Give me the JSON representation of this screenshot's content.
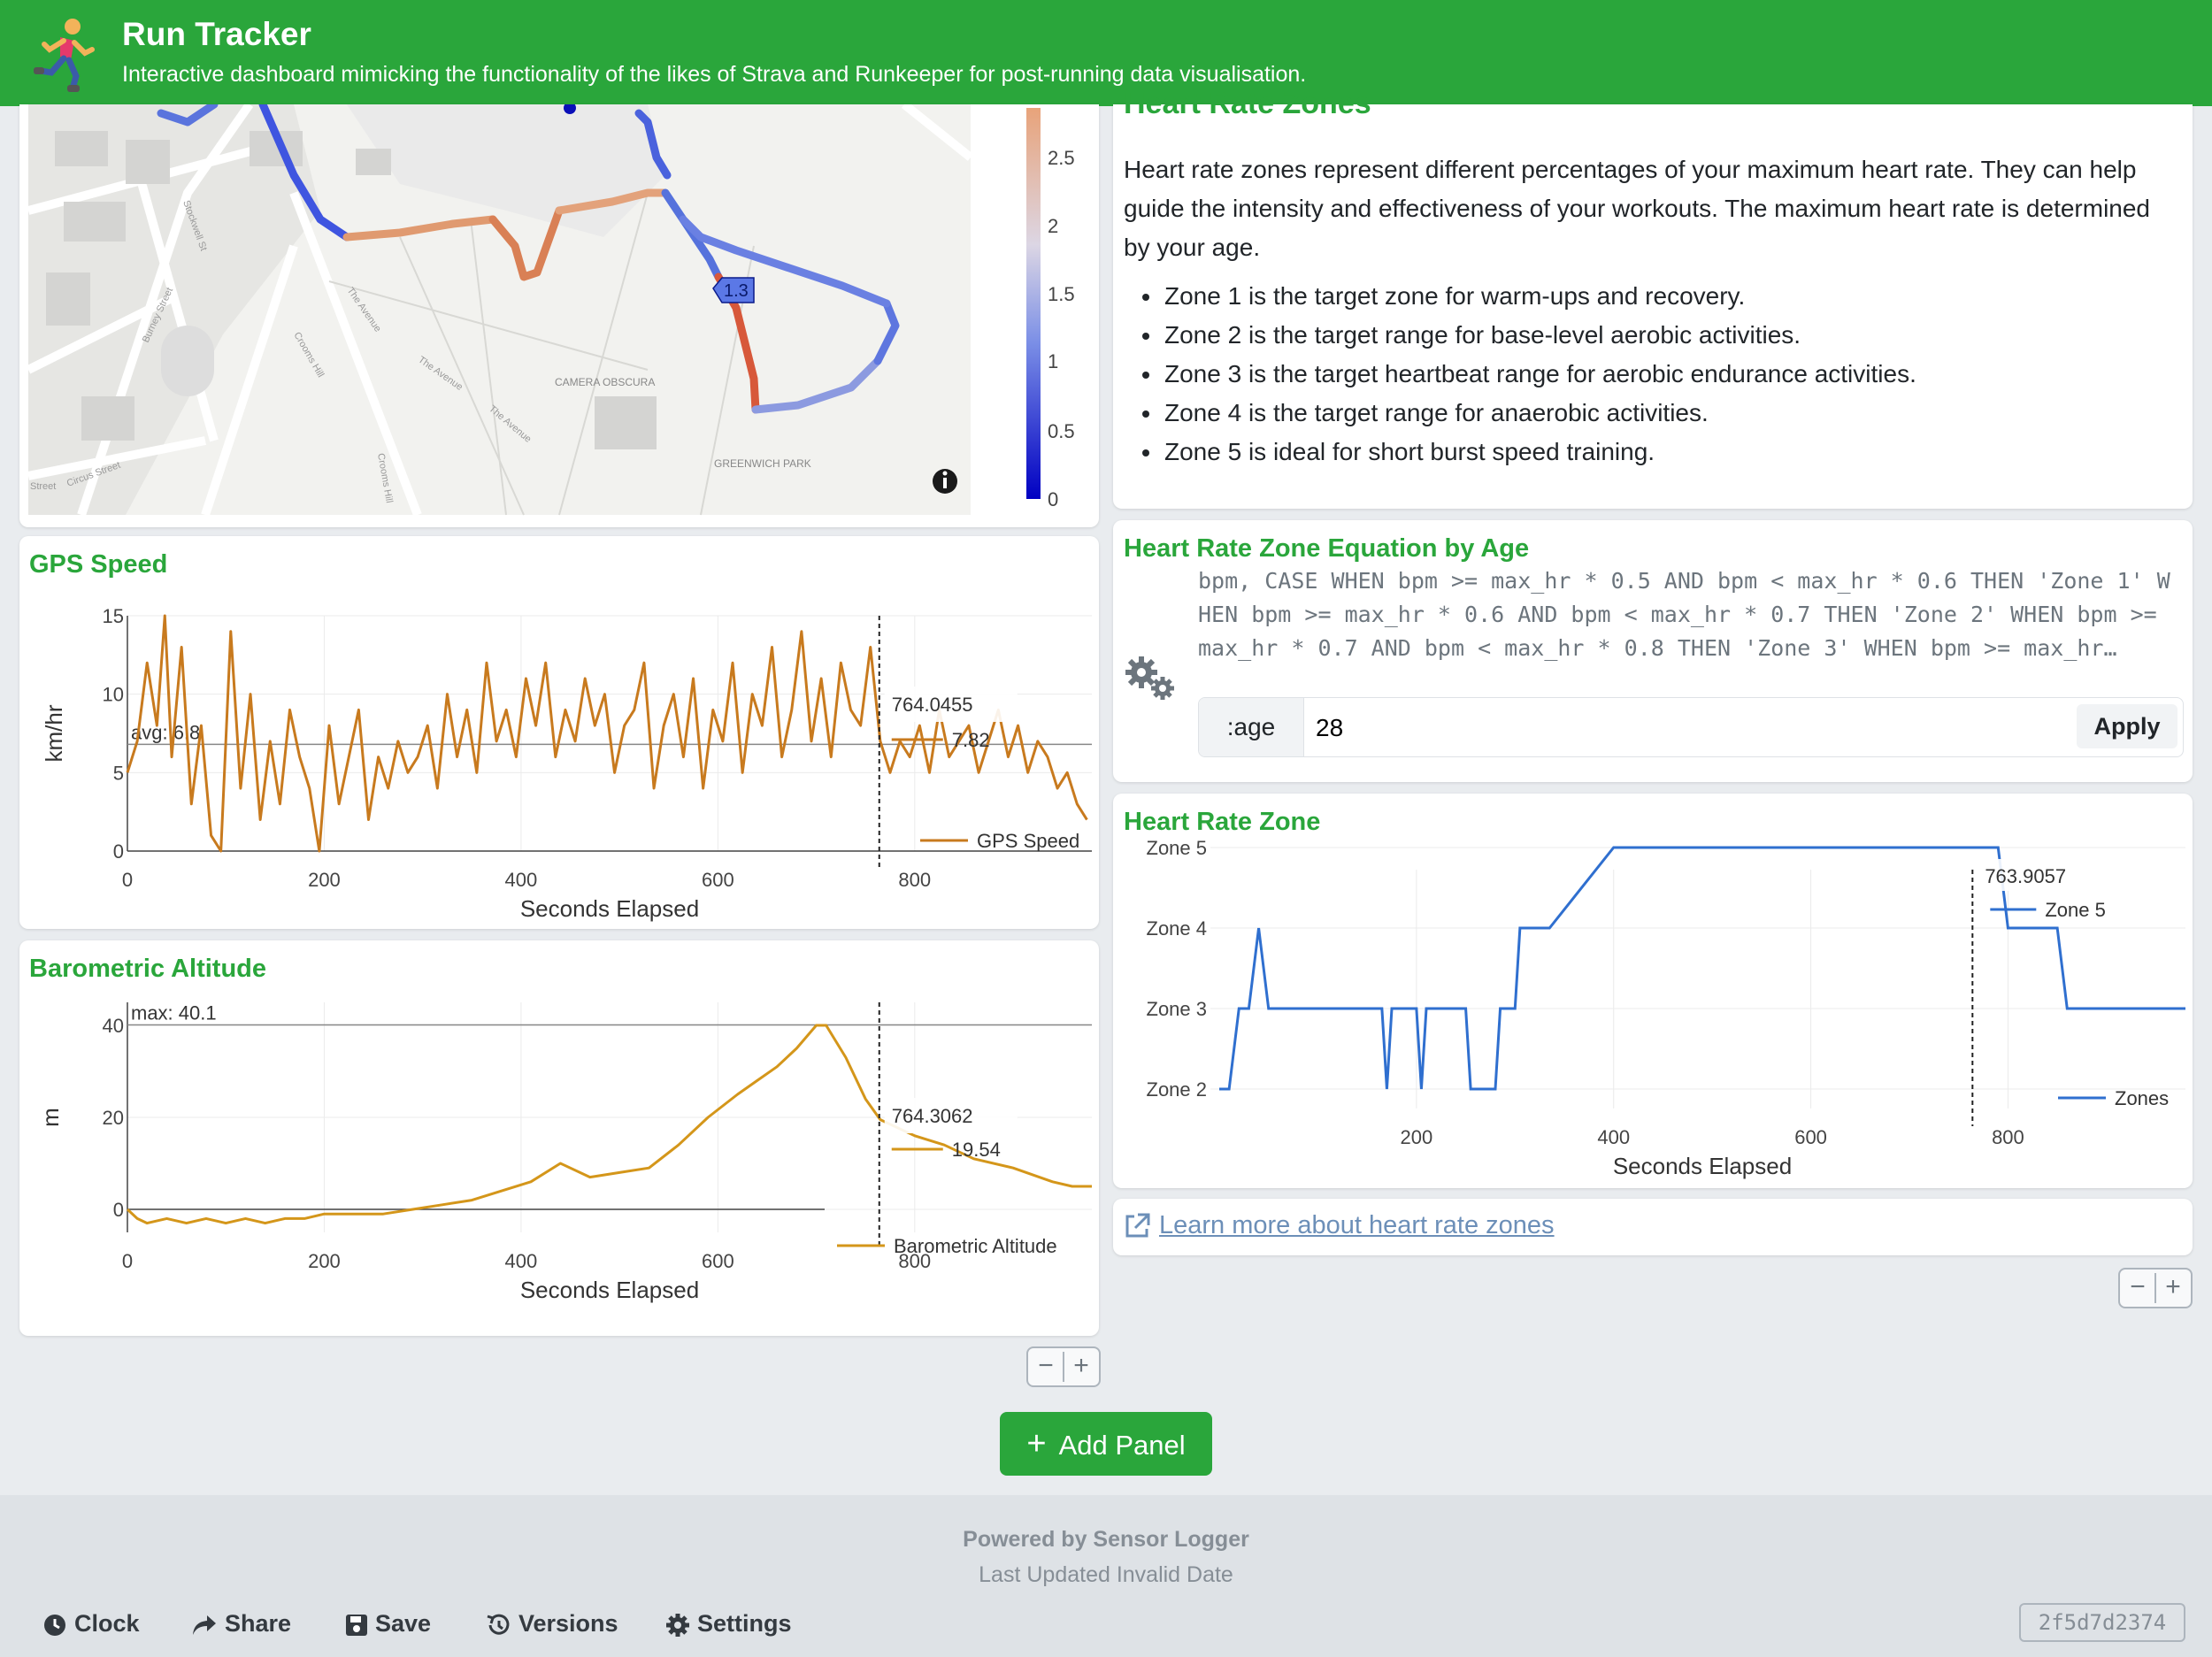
{
  "header": {
    "title": "Run Tracker",
    "subtitle": "Interactive dashboard mimicking the functionality of the likes of Strava and Runkeeper for post-running data visualisation.",
    "icon": "runner-icon",
    "color": "#2aa63b"
  },
  "map": {
    "labels": [
      "CAMERA OBSCURA",
      "GREENWICH PARK",
      "The Avenue",
      "The Avenue",
      "The Avenue",
      "Crooms Hill",
      "Crooms Hill",
      "Stockwell St",
      "Burney Street",
      "Circus Street",
      "Street"
    ],
    "tooltip": "1.3",
    "colorbar_ticks": [
      "2.5",
      "2",
      "1.5",
      "1",
      "0.5",
      "0"
    ],
    "info_icon": "info-icon"
  },
  "gps": {
    "title": "GPS Speed",
    "ylabel": "km/hr",
    "xlabel": "Seconds Elapsed",
    "avg_label": "avg: 6.8",
    "hover_x": "764.0455",
    "hover_y": "7.82",
    "legend": "GPS Speed",
    "color": "#c87a1e"
  },
  "altitude": {
    "title": "Barometric Altitude",
    "ylabel": "m",
    "xlabel": "Seconds Elapsed",
    "max_label": "max: 40.1",
    "hover_x": "764.3062",
    "hover_y": "19.54",
    "legend": "Barometric Altitude",
    "color": "#d4961a"
  },
  "hr_info": {
    "title": "Heart Rate Zones",
    "intro": "Heart rate zones represent different percentages of your maximum heart rate. They can help guide the intensity and effectiveness of your workouts. The maximum heart rate is determined by your age.",
    "items": [
      "Zone 1 is the target zone for warm-ups and recovery.",
      "Zone 2 is the target range for base-level aerobic activities.",
      "Zone 3 is the target heartbeat range for aerobic endurance activities.",
      "Zone 4 is the target range for anaerobic activities.",
      "Zone 5 is ideal for short burst speed training."
    ]
  },
  "equation": {
    "title": "Heart Rate Zone Equation by Age",
    "code": "bpm, CASE WHEN bpm >= max_hr * 0.5 AND bpm < max_hr * 0.6 THEN 'Zone 1' WHEN bpm >= max_hr * 0.6 AND bpm < max_hr * 0.7 THEN 'Zone 2' WHEN bpm >= max_hr * 0.7 AND bpm < max_hr * 0.8 THEN 'Zone 3' WHEN bpm >= max_hr…",
    "age_label": ":age",
    "age_value": "28",
    "apply_label": "Apply"
  },
  "hr_zone": {
    "title": "Heart Rate Zone",
    "xlabel": "Seconds Elapsed",
    "hover_x": "763.9057",
    "hover_y": "Zone 5",
    "legend": "Zones",
    "color": "#2f6fcf"
  },
  "learn_more": {
    "label": "Learn more about heart rate zones"
  },
  "add_panel": {
    "label": "Add Panel"
  },
  "footer": {
    "powered_by": "Powered by Sensor Logger",
    "last_updated": "Last Updated Invalid Date",
    "buttons": [
      "Clock",
      "Share",
      "Save",
      "Versions",
      "Settings"
    ],
    "version": "2f5d7d2374"
  },
  "chart_data": [
    {
      "type": "line",
      "title": "GPS Speed",
      "xlabel": "Seconds Elapsed",
      "ylabel": "km/hr",
      "xlim": [
        0,
        980
      ],
      "ylim": [
        0,
        15
      ],
      "x_ticks": [
        "0",
        "200",
        "400",
        "600",
        "800"
      ],
      "y_ticks": [
        "0",
        "5",
        "10",
        "15"
      ],
      "average": 6.8,
      "series": [
        {
          "name": "GPS Speed",
          "x": [
            0,
            10,
            20,
            30,
            38,
            45,
            55,
            65,
            75,
            85,
            95,
            105,
            115,
            125,
            135,
            145,
            155,
            165,
            175,
            185,
            195,
            205,
            215,
            225,
            235,
            245,
            255,
            265,
            275,
            285,
            295,
            305,
            315,
            325,
            335,
            345,
            355,
            365,
            375,
            385,
            395,
            405,
            415,
            425,
            435,
            445,
            455,
            465,
            475,
            485,
            495,
            505,
            515,
            525,
            535,
            545,
            555,
            565,
            575,
            585,
            595,
            605,
            615,
            625,
            635,
            645,
            655,
            665,
            675,
            685,
            695,
            705,
            715,
            725,
            735,
            745,
            755,
            765,
            775,
            785,
            795,
            805,
            815,
            825,
            835,
            845,
            855,
            865,
            875,
            885,
            895,
            905,
            915,
            925,
            935,
            945,
            955,
            965,
            975
          ],
          "y": [
            5,
            7,
            12,
            8,
            15,
            6,
            13,
            3,
            8,
            1,
            0,
            14,
            4,
            10,
            2,
            7,
            3,
            9,
            6,
            4,
            0,
            8,
            3,
            6,
            9,
            2,
            6,
            4,
            7,
            5,
            6,
            8,
            4,
            10,
            6,
            9,
            5,
            12,
            7,
            9,
            6,
            11,
            8,
            12,
            6,
            9,
            7,
            11,
            8,
            10,
            5,
            8,
            9,
            12,
            4,
            8,
            10,
            6,
            11,
            4,
            9,
            7,
            12,
            5,
            10,
            8,
            13,
            6,
            9,
            14,
            7,
            11,
            6,
            12,
            9,
            8,
            13,
            7,
            5,
            7,
            6,
            8,
            5,
            9,
            6,
            7,
            8,
            5,
            7,
            9,
            6,
            8,
            5,
            7,
            6,
            4,
            5,
            3,
            2
          ]
        }
      ]
    },
    {
      "type": "line",
      "title": "Barometric Altitude",
      "xlabel": "Seconds Elapsed",
      "ylabel": "m",
      "xlim": [
        0,
        980
      ],
      "ylim": [
        -5,
        45
      ],
      "x_ticks": [
        "0",
        "200",
        "400",
        "600",
        "800"
      ],
      "y_ticks": [
        "0",
        "20",
        "40"
      ],
      "max": 40.1,
      "series": [
        {
          "name": "Barometric Altitude",
          "x": [
            0,
            10,
            20,
            40,
            60,
            80,
            100,
            120,
            140,
            160,
            180,
            200,
            230,
            260,
            290,
            320,
            350,
            380,
            410,
            440,
            470,
            500,
            530,
            560,
            590,
            620,
            640,
            660,
            680,
            700,
            710,
            730,
            750,
            765,
            780,
            800,
            830,
            860,
            900,
            940,
            960,
            970,
            980
          ],
          "y": [
            0,
            -2,
            -3,
            -2,
            -3,
            -2,
            -3,
            -2,
            -3,
            -2,
            -2,
            -1,
            -1,
            -1,
            0,
            1,
            2,
            4,
            6,
            10,
            7,
            8,
            9,
            14,
            20,
            25,
            28,
            31,
            35,
            40,
            40,
            33,
            24,
            19.5,
            18,
            16,
            14,
            11,
            9,
            6,
            5,
            5,
            5
          ]
        }
      ]
    },
    {
      "type": "line",
      "title": "Heart Rate Zone",
      "xlabel": "Seconds Elapsed",
      "xlim": [
        0,
        980
      ],
      "x_ticks": [
        "200",
        "400",
        "600",
        "800"
      ],
      "y_categories": [
        "Zone 2",
        "Zone 3",
        "Zone 4",
        "Zone 5"
      ],
      "series": [
        {
          "name": "Zones",
          "x": [
            0,
            10,
            20,
            30,
            40,
            50,
            55,
            60,
            70,
            165,
            170,
            175,
            180,
            185,
            200,
            205,
            210,
            215,
            250,
            255,
            260,
            280,
            285,
            300,
            305,
            310,
            330,
            335,
            400,
            405,
            780,
            790,
            800,
            810,
            850,
            860,
            980
          ],
          "y": [
            2,
            2,
            3,
            3,
            4,
            3,
            3,
            3,
            3,
            3,
            2,
            3,
            3,
            3,
            3,
            2,
            3,
            3,
            3,
            2,
            2,
            2,
            3,
            3,
            4,
            4,
            4,
            4,
            5,
            5,
            5,
            5,
            4,
            4,
            4,
            3,
            3
          ]
        }
      ]
    }
  ]
}
